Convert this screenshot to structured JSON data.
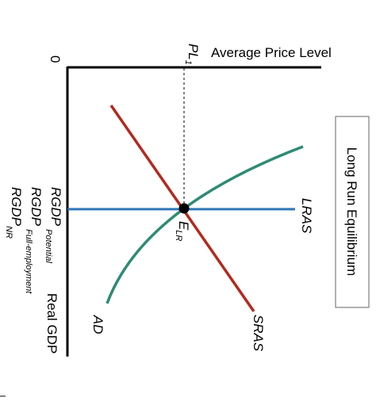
{
  "axis_labels": {
    "origin": "0",
    "price": "Average Price Level",
    "price_level": {
      "main": "PL",
      "sub": "1"
    },
    "output": "Real GDP"
  },
  "curves": {
    "lras": "LRAS",
    "sras": "SRAS",
    "ad": "AD"
  },
  "equilibrium": {
    "main": "E",
    "sub": "LR"
  },
  "gdp_labels": [
    {
      "main": "RGDP",
      "sub": "Potential"
    },
    {
      "main": "RGDP",
      "sub": "Full-employment"
    },
    {
      "main": "RGDP",
      "sub": "NR"
    }
  ],
  "box": {
    "title": "Long Run Equilibrium"
  }
}
